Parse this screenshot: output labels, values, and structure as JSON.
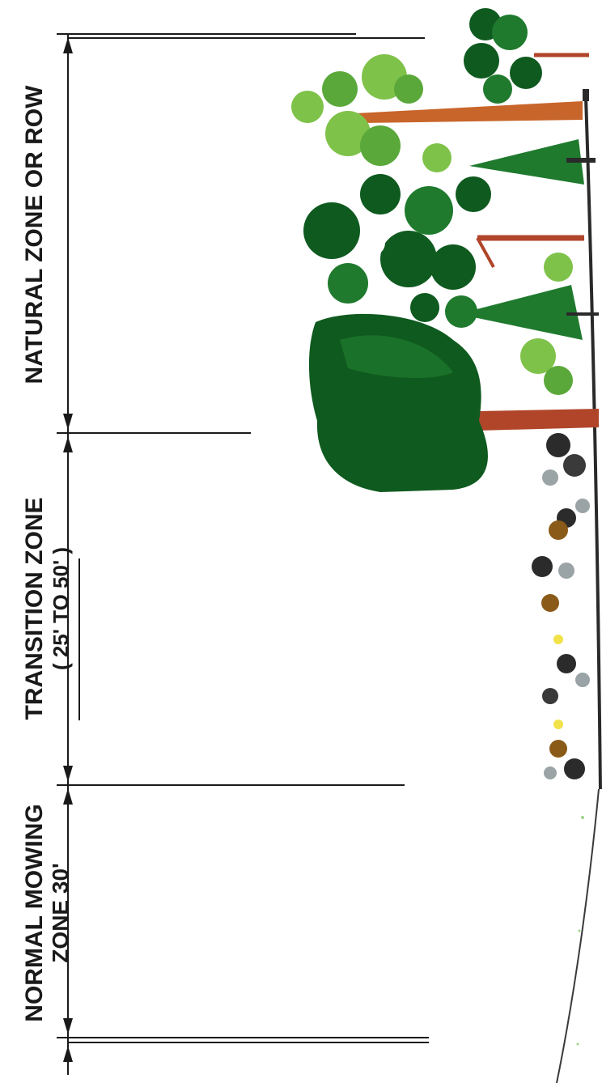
{
  "zones": [
    {
      "id": "natural",
      "label_lines": [
        "NATURAL ZONE OR ROW"
      ]
    },
    {
      "id": "transition",
      "label_lines": [
        "TRANSITION ZONE",
        "( 25' TO 50' )"
      ]
    },
    {
      "id": "mowing",
      "label_lines": [
        "NORMAL MOWING",
        "ZONE 30'"
      ]
    }
  ],
  "colors": {
    "line": "#1a1a1a",
    "ground": "#2a2a2a",
    "tree_dark": "#0f5a1f",
    "tree_mid": "#1f7a2e",
    "tree_light": "#7fc24a",
    "trunk": "#b0452a",
    "trunk_orange": "#c8652a",
    "shrub_dark": "#2b2b2b",
    "shrub_grey": "#9aa3a6",
    "flower_yellow": "#f2e24a",
    "flower_brown": "#8a5a18"
  }
}
